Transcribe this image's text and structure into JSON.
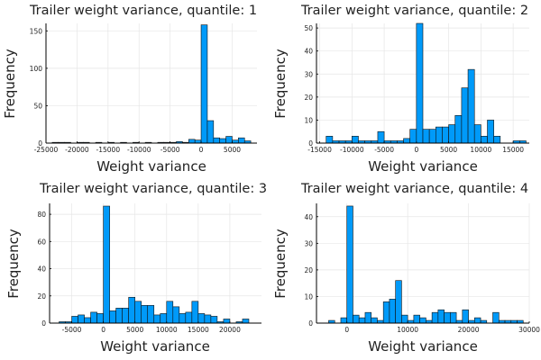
{
  "colors": {
    "bar": "#009af9",
    "bar_edge": "#111111",
    "axis": "#000000",
    "grid": "#e6e6e6"
  },
  "chart_data": [
    {
      "type": "bar",
      "title": "Trailer weight variance, quantile: 1",
      "xlabel": "Weight variance",
      "ylabel": "Frequency",
      "grid": true,
      "legend": "none",
      "xlim": [
        -25000,
        9000
      ],
      "ylim": [
        0,
        160
      ],
      "bin_width": 1000,
      "xticks": [
        -25000,
        -20000,
        -15000,
        -10000,
        -5000,
        0,
        5000
      ],
      "xtick_labels": [
        "-25000",
        "-20000",
        "-15000",
        "-10000",
        "-5000",
        "0",
        "5000"
      ],
      "yticks": [
        0,
        50,
        100,
        150
      ],
      "ytick_labels": [
        "0",
        "50",
        "100",
        "150"
      ],
      "bins": [
        {
          "x": -24000,
          "y": 1
        },
        {
          "x": -23000,
          "y": 1
        },
        {
          "x": -22000,
          "y": 1
        },
        {
          "x": -20000,
          "y": 1
        },
        {
          "x": -19000,
          "y": 1
        },
        {
          "x": -17000,
          "y": 1
        },
        {
          "x": -15000,
          "y": 1
        },
        {
          "x": -13000,
          "y": 1
        },
        {
          "x": -11000,
          "y": 1
        },
        {
          "x": -9000,
          "y": 1
        },
        {
          "x": -7000,
          "y": 1
        },
        {
          "x": -6000,
          "y": 1
        },
        {
          "x": -5000,
          "y": 1
        },
        {
          "x": -4000,
          "y": 2
        },
        {
          "x": -3000,
          "y": 1
        },
        {
          "x": -2000,
          "y": 5
        },
        {
          "x": -1000,
          "y": 4
        },
        {
          "x": 0,
          "y": 158
        },
        {
          "x": 1000,
          "y": 30
        },
        {
          "x": 2000,
          "y": 7
        },
        {
          "x": 3000,
          "y": 6
        },
        {
          "x": 4000,
          "y": 9
        },
        {
          "x": 5000,
          "y": 4
        },
        {
          "x": 6000,
          "y": 7
        },
        {
          "x": 7000,
          "y": 3
        }
      ]
    },
    {
      "type": "bar",
      "title": "Trailer weight variance, quantile: 2",
      "xlabel": "Weight variance",
      "ylabel": "Frequency",
      "grid": true,
      "legend": "none",
      "xlim": [
        -15500,
        17500
      ],
      "ylim": [
        0,
        52
      ],
      "bin_width": 1000,
      "xticks": [
        -15000,
        -10000,
        -5000,
        0,
        5000,
        10000,
        15000
      ],
      "xtick_labels": [
        "-15000",
        "-10000",
        "-5000",
        "0",
        "5000",
        "10000",
        "15000"
      ],
      "yticks": [
        0,
        10,
        20,
        30,
        40,
        50
      ],
      "ytick_labels": [
        "0",
        "10",
        "20",
        "30",
        "40",
        "50"
      ],
      "bins": [
        {
          "x": -14000,
          "y": 3
        },
        {
          "x": -13000,
          "y": 1
        },
        {
          "x": -12000,
          "y": 1
        },
        {
          "x": -11000,
          "y": 1
        },
        {
          "x": -10000,
          "y": 3
        },
        {
          "x": -9000,
          "y": 1
        },
        {
          "x": -8000,
          "y": 1
        },
        {
          "x": -7000,
          "y": 1
        },
        {
          "x": -6000,
          "y": 5
        },
        {
          "x": -5000,
          "y": 1
        },
        {
          "x": -4000,
          "y": 1
        },
        {
          "x": -3000,
          "y": 1
        },
        {
          "x": -2000,
          "y": 2
        },
        {
          "x": -1000,
          "y": 6
        },
        {
          "x": 0,
          "y": 52
        },
        {
          "x": 1000,
          "y": 6
        },
        {
          "x": 2000,
          "y": 6
        },
        {
          "x": 3000,
          "y": 7
        },
        {
          "x": 4000,
          "y": 7
        },
        {
          "x": 5000,
          "y": 8
        },
        {
          "x": 6000,
          "y": 12
        },
        {
          "x": 7000,
          "y": 24
        },
        {
          "x": 8000,
          "y": 32
        },
        {
          "x": 9000,
          "y": 8
        },
        {
          "x": 10000,
          "y": 3
        },
        {
          "x": 11000,
          "y": 10
        },
        {
          "x": 12000,
          "y": 3
        },
        {
          "x": 15000,
          "y": 1
        },
        {
          "x": 16000,
          "y": 1
        }
      ]
    },
    {
      "type": "bar",
      "title": "Trailer weight variance, quantile: 3",
      "xlabel": "Weight variance",
      "ylabel": "Frequency",
      "grid": true,
      "legend": "none",
      "xlim": [
        -8500,
        25000
      ],
      "ylim": [
        0,
        88
      ],
      "bin_width": 1000,
      "xticks": [
        -5000,
        0,
        5000,
        10000,
        15000,
        20000
      ],
      "xtick_labels": [
        "-5000",
        "0",
        "5000",
        "10000",
        "15000",
        "20000"
      ],
      "yticks": [
        0,
        20,
        40,
        60,
        80
      ],
      "ytick_labels": [
        "0",
        "20",
        "40",
        "60",
        "80"
      ],
      "bins": [
        {
          "x": -7000,
          "y": 1
        },
        {
          "x": -6000,
          "y": 1
        },
        {
          "x": -5000,
          "y": 5
        },
        {
          "x": -4000,
          "y": 6
        },
        {
          "x": -3000,
          "y": 4
        },
        {
          "x": -2000,
          "y": 8
        },
        {
          "x": -1000,
          "y": 7
        },
        {
          "x": 0,
          "y": 86
        },
        {
          "x": 1000,
          "y": 9
        },
        {
          "x": 2000,
          "y": 11
        },
        {
          "x": 3000,
          "y": 11
        },
        {
          "x": 4000,
          "y": 19
        },
        {
          "x": 5000,
          "y": 16
        },
        {
          "x": 6000,
          "y": 13
        },
        {
          "x": 7000,
          "y": 13
        },
        {
          "x": 8000,
          "y": 6
        },
        {
          "x": 9000,
          "y": 7
        },
        {
          "x": 10000,
          "y": 16
        },
        {
          "x": 11000,
          "y": 12
        },
        {
          "x": 12000,
          "y": 7
        },
        {
          "x": 13000,
          "y": 8
        },
        {
          "x": 14000,
          "y": 16
        },
        {
          "x": 15000,
          "y": 7
        },
        {
          "x": 16000,
          "y": 6
        },
        {
          "x": 17000,
          "y": 5
        },
        {
          "x": 18000,
          "y": 1
        },
        {
          "x": 19000,
          "y": 3
        },
        {
          "x": 21000,
          "y": 1
        },
        {
          "x": 22000,
          "y": 3
        }
      ]
    },
    {
      "type": "bar",
      "title": "Trailer weight variance, quantile: 4",
      "xlabel": "Weight variance",
      "ylabel": "Frequency",
      "grid": true,
      "legend": "none",
      "xlim": [
        -5000,
        30000
      ],
      "ylim": [
        0,
        45
      ],
      "bin_width": 1000,
      "xticks": [
        0,
        10000,
        20000,
        30000
      ],
      "xtick_labels": [
        "0",
        "10000",
        "20000",
        "30000"
      ],
      "yticks": [
        0,
        10,
        20,
        30,
        40
      ],
      "ytick_labels": [
        "0",
        "10",
        "20",
        "30",
        "40"
      ],
      "bins": [
        {
          "x": -3000,
          "y": 1
        },
        {
          "x": -1000,
          "y": 2
        },
        {
          "x": 0,
          "y": 44
        },
        {
          "x": 1000,
          "y": 3
        },
        {
          "x": 2000,
          "y": 2
        },
        {
          "x": 3000,
          "y": 4
        },
        {
          "x": 4000,
          "y": 2
        },
        {
          "x": 5000,
          "y": 1
        },
        {
          "x": 6000,
          "y": 8
        },
        {
          "x": 7000,
          "y": 9
        },
        {
          "x": 8000,
          "y": 16
        },
        {
          "x": 9000,
          "y": 3
        },
        {
          "x": 10000,
          "y": 1
        },
        {
          "x": 11000,
          "y": 3
        },
        {
          "x": 12000,
          "y": 2
        },
        {
          "x": 13000,
          "y": 1
        },
        {
          "x": 14000,
          "y": 4
        },
        {
          "x": 15000,
          "y": 5
        },
        {
          "x": 16000,
          "y": 4
        },
        {
          "x": 17000,
          "y": 4
        },
        {
          "x": 18000,
          "y": 1
        },
        {
          "x": 19000,
          "y": 5
        },
        {
          "x": 20000,
          "y": 1
        },
        {
          "x": 21000,
          "y": 2
        },
        {
          "x": 22000,
          "y": 1
        },
        {
          "x": 24000,
          "y": 4
        },
        {
          "x": 25000,
          "y": 1
        },
        {
          "x": 26000,
          "y": 1
        },
        {
          "x": 27000,
          "y": 1
        },
        {
          "x": 28000,
          "y": 1
        }
      ]
    }
  ]
}
